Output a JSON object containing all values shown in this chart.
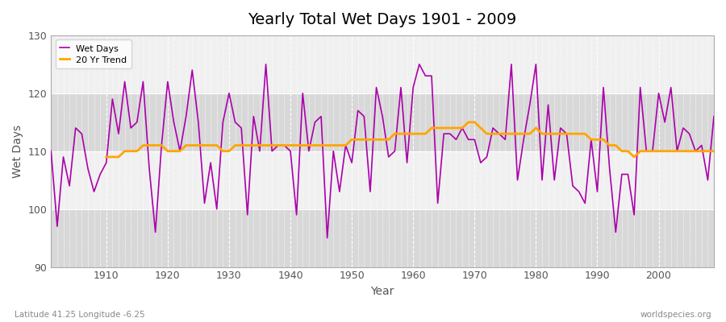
{
  "title": "Yearly Total Wet Days 1901 - 2009",
  "xlabel": "Year",
  "ylabel": "Wet Days",
  "subtitle": "Latitude 41.25 Longitude -6.25",
  "watermark": "worldspecies.org",
  "xlim": [
    1901,
    2009
  ],
  "ylim": [
    90,
    130
  ],
  "yticks": [
    90,
    100,
    110,
    120,
    130
  ],
  "xticks": [
    1910,
    1920,
    1930,
    1940,
    1950,
    1960,
    1970,
    1980,
    1990,
    2000
  ],
  "wet_days_color": "#AA00AA",
  "trend_color": "#FFA500",
  "bg_color": "#FFFFFF",
  "plot_bg_color": "#F0F0F0",
  "band_color_light": "#E8E8E8",
  "band_color_dark": "#D8D8D8",
  "years": [
    1901,
    1902,
    1903,
    1904,
    1905,
    1906,
    1907,
    1908,
    1909,
    1910,
    1911,
    1912,
    1913,
    1914,
    1915,
    1916,
    1917,
    1918,
    1919,
    1920,
    1921,
    1922,
    1923,
    1924,
    1925,
    1926,
    1927,
    1928,
    1929,
    1930,
    1931,
    1932,
    1933,
    1934,
    1935,
    1936,
    1937,
    1938,
    1939,
    1940,
    1941,
    1942,
    1943,
    1944,
    1945,
    1946,
    1947,
    1948,
    1949,
    1950,
    1951,
    1952,
    1953,
    1954,
    1955,
    1956,
    1957,
    1958,
    1959,
    1960,
    1961,
    1962,
    1963,
    1964,
    1965,
    1966,
    1967,
    1968,
    1969,
    1970,
    1971,
    1972,
    1973,
    1974,
    1975,
    1976,
    1977,
    1978,
    1979,
    1980,
    1981,
    1982,
    1983,
    1984,
    1985,
    1986,
    1987,
    1988,
    1989,
    1990,
    1991,
    1992,
    1993,
    1994,
    1995,
    1996,
    1997,
    1998,
    1999,
    2000,
    2001,
    2002,
    2003,
    2004,
    2005,
    2006,
    2007,
    2008,
    2009
  ],
  "wet_days": [
    110,
    97,
    109,
    104,
    114,
    113,
    107,
    103,
    106,
    108,
    119,
    113,
    122,
    114,
    115,
    122,
    107,
    96,
    111,
    122,
    115,
    110,
    116,
    124,
    115,
    101,
    108,
    100,
    115,
    120,
    115,
    114,
    99,
    116,
    110,
    125,
    110,
    111,
    111,
    110,
    99,
    120,
    110,
    115,
    116,
    95,
    110,
    103,
    111,
    108,
    117,
    116,
    103,
    121,
    116,
    109,
    110,
    121,
    108,
    121,
    125,
    123,
    123,
    101,
    113,
    113,
    112,
    114,
    112,
    112,
    108,
    109,
    114,
    113,
    112,
    125,
    105,
    112,
    118,
    125,
    105,
    118,
    105,
    114,
    113,
    104,
    103,
    101,
    112,
    103,
    121,
    107,
    96,
    106,
    106,
    99,
    121,
    110,
    110,
    120,
    115,
    121,
    110,
    114,
    113,
    110,
    111,
    105,
    116
  ],
  "trend_values": [
    null,
    null,
    null,
    null,
    null,
    null,
    null,
    null,
    null,
    109.0,
    109.0,
    109.0,
    110.0,
    110.0,
    110.0,
    111.0,
    111.0,
    111.0,
    111.0,
    110.0,
    110.0,
    110.0,
    111.0,
    111.0,
    111.0,
    111.0,
    111.0,
    111.0,
    110.0,
    110.0,
    111.0,
    111.0,
    111.0,
    111.0,
    111.0,
    111.0,
    111.0,
    111.0,
    111.0,
    111.0,
    111.0,
    111.0,
    111.0,
    111.0,
    111.0,
    111.0,
    111.0,
    111.0,
    111.0,
    112.0,
    112.0,
    112.0,
    112.0,
    112.0,
    112.0,
    112.0,
    113.0,
    113.0,
    113.0,
    113.0,
    113.0,
    113.0,
    114.0,
    114.0,
    114.0,
    114.0,
    114.0,
    114.0,
    115.0,
    115.0,
    114.0,
    113.0,
    113.0,
    113.0,
    113.0,
    113.0,
    113.0,
    113.0,
    113.0,
    114.0,
    113.0,
    113.0,
    113.0,
    113.0,
    113.0,
    113.0,
    113.0,
    113.0,
    112.0,
    112.0,
    112.0,
    111.0,
    111.0,
    110.0,
    110.0,
    109.0,
    110.0,
    110.0,
    110.0,
    110.0,
    110.0,
    110.0,
    110.0,
    110.0,
    110.0,
    110.0,
    110.0,
    110.0,
    110.0
  ]
}
